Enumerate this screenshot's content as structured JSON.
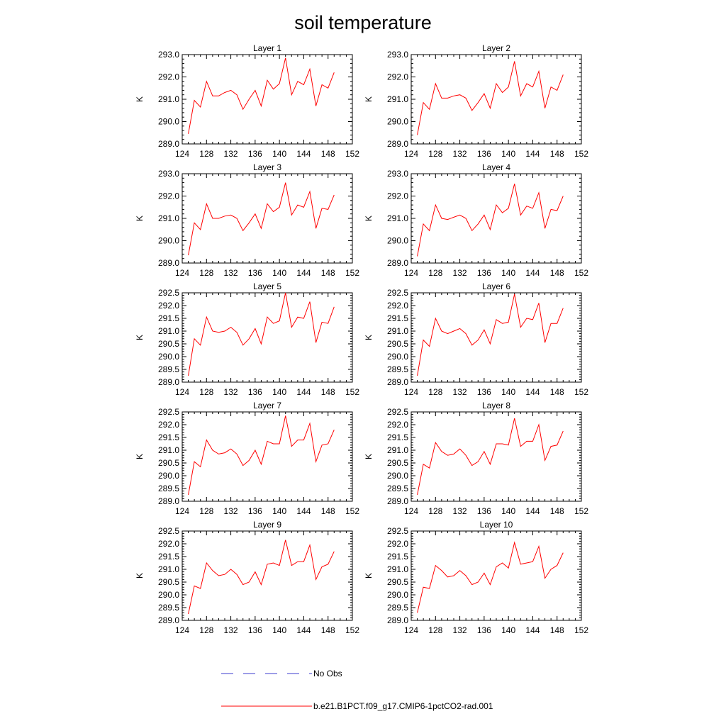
{
  "figure": {
    "title": "soil temperature"
  },
  "legend": {
    "entries": [
      {
        "label": "No Obs",
        "color": "#3b3bcf",
        "style": "dashed"
      },
      {
        "label": "b.e21.B1PCT.f09_g17.CMIP6-1pctCO2-rad.001",
        "color": "#ff0000",
        "style": "solid"
      }
    ]
  },
  "chart_data": [
    {
      "type": "line",
      "title": "Layer 1",
      "ylabel": "K",
      "xlim": [
        124,
        152
      ],
      "ylim": [
        289.0,
        293.0
      ],
      "xticks": [
        "124",
        "128",
        "132",
        "136",
        "140",
        "144",
        "148",
        "152"
      ],
      "yticks": [
        "289.0",
        "290.0",
        "291.0",
        "292.0",
        "293.0"
      ],
      "series": [
        {
          "name": "b.e21.B1PCT.f09_g17.CMIP6-1pctCO2-rad.001",
          "x": [
            125,
            126,
            127,
            128,
            129,
            130,
            131,
            132,
            133,
            134,
            135,
            136,
            137,
            138,
            139,
            140,
            141,
            142,
            143,
            144,
            145,
            146,
            147,
            148,
            149
          ],
          "values": [
            289.45,
            290.95,
            290.65,
            291.8,
            291.15,
            291.15,
            291.3,
            291.4,
            291.2,
            290.55,
            291.0,
            291.4,
            290.7,
            291.85,
            291.45,
            291.7,
            292.85,
            291.2,
            291.8,
            291.65,
            292.35,
            290.7,
            291.65,
            291.5,
            292.2
          ]
        }
      ]
    },
    {
      "type": "line",
      "title": "Layer 2",
      "ylabel": "K",
      "xlim": [
        124,
        152
      ],
      "ylim": [
        289.0,
        293.0
      ],
      "xticks": [
        "124",
        "128",
        "132",
        "136",
        "140",
        "144",
        "148",
        "152"
      ],
      "yticks": [
        "289.0",
        "290.0",
        "291.0",
        "292.0",
        "293.0"
      ],
      "series": [
        {
          "name": "b.e21.B1PCT.f09_g17.CMIP6-1pctCO2-rad.001",
          "x": [
            125,
            126,
            127,
            128,
            129,
            130,
            131,
            132,
            133,
            134,
            135,
            136,
            137,
            138,
            139,
            140,
            141,
            142,
            143,
            144,
            145,
            146,
            147,
            148,
            149
          ],
          "values": [
            289.4,
            290.85,
            290.55,
            291.7,
            291.05,
            291.05,
            291.15,
            291.2,
            291.05,
            290.5,
            290.85,
            291.25,
            290.6,
            291.7,
            291.3,
            291.55,
            292.7,
            291.15,
            291.7,
            291.55,
            292.25,
            290.6,
            291.55,
            291.4,
            292.1
          ]
        }
      ]
    },
    {
      "type": "line",
      "title": "Layer 3",
      "ylabel": "K",
      "xlim": [
        124,
        152
      ],
      "ylim": [
        289.0,
        293.0
      ],
      "xticks": [
        "124",
        "128",
        "132",
        "136",
        "140",
        "144",
        "148",
        "152"
      ],
      "yticks": [
        "289.0",
        "290.0",
        "291.0",
        "292.0",
        "293.0"
      ],
      "series": [
        {
          "name": "b.e21.B1PCT.f09_g17.CMIP6-1pctCO2-rad.001",
          "x": [
            125,
            126,
            127,
            128,
            129,
            130,
            131,
            132,
            133,
            134,
            135,
            136,
            137,
            138,
            139,
            140,
            141,
            142,
            143,
            144,
            145,
            146,
            147,
            148,
            149
          ],
          "values": [
            289.35,
            290.8,
            290.5,
            291.65,
            291.0,
            291.0,
            291.1,
            291.15,
            291.0,
            290.45,
            290.8,
            291.2,
            290.55,
            291.65,
            291.3,
            291.5,
            292.6,
            291.15,
            291.6,
            291.5,
            292.2,
            290.55,
            291.45,
            291.4,
            292.05
          ]
        }
      ]
    },
    {
      "type": "line",
      "title": "Layer 4",
      "ylabel": "K",
      "xlim": [
        124,
        152
      ],
      "ylim": [
        289.0,
        293.0
      ],
      "xticks": [
        "124",
        "128",
        "132",
        "136",
        "140",
        "144",
        "148",
        "152"
      ],
      "yticks": [
        "289.0",
        "290.0",
        "291.0",
        "292.0",
        "293.0"
      ],
      "series": [
        {
          "name": "b.e21.B1PCT.f09_g17.CMIP6-1pctCO2-rad.001",
          "x": [
            125,
            126,
            127,
            128,
            129,
            130,
            131,
            132,
            133,
            134,
            135,
            136,
            137,
            138,
            139,
            140,
            141,
            142,
            143,
            144,
            145,
            146,
            147,
            148,
            149
          ],
          "values": [
            289.3,
            290.75,
            290.45,
            291.6,
            291.0,
            290.95,
            291.05,
            291.15,
            291.0,
            290.45,
            290.75,
            291.15,
            290.5,
            291.6,
            291.25,
            291.45,
            292.55,
            291.15,
            291.55,
            291.45,
            292.15,
            290.55,
            291.4,
            291.35,
            292.0
          ]
        }
      ]
    },
    {
      "type": "line",
      "title": "Layer 5",
      "ylabel": "K",
      "xlim": [
        124,
        152
      ],
      "ylim": [
        289.0,
        292.5
      ],
      "xticks": [
        "124",
        "128",
        "132",
        "136",
        "140",
        "144",
        "148",
        "152"
      ],
      "yticks": [
        "289.0",
        "289.5",
        "290.0",
        "290.5",
        "291.0",
        "291.5",
        "292.0",
        "292.5"
      ],
      "series": [
        {
          "name": "b.e21.B1PCT.f09_g17.CMIP6-1pctCO2-rad.001",
          "x": [
            125,
            126,
            127,
            128,
            129,
            130,
            131,
            132,
            133,
            134,
            135,
            136,
            137,
            138,
            139,
            140,
            141,
            142,
            143,
            144,
            145,
            146,
            147,
            148,
            149
          ],
          "values": [
            289.25,
            290.7,
            290.45,
            291.55,
            291.0,
            290.95,
            291.0,
            291.15,
            290.95,
            290.45,
            290.7,
            291.1,
            290.5,
            291.55,
            291.3,
            291.4,
            292.5,
            291.15,
            291.55,
            291.5,
            292.15,
            290.55,
            291.35,
            291.3,
            291.95
          ]
        }
      ]
    },
    {
      "type": "line",
      "title": "Layer 6",
      "ylabel": "K",
      "xlim": [
        124,
        152
      ],
      "ylim": [
        289.0,
        292.5
      ],
      "xticks": [
        "124",
        "128",
        "132",
        "136",
        "140",
        "144",
        "148",
        "152"
      ],
      "yticks": [
        "289.0",
        "289.5",
        "290.0",
        "290.5",
        "291.0",
        "291.5",
        "292.0",
        "292.5"
      ],
      "series": [
        {
          "name": "b.e21.B1PCT.f09_g17.CMIP6-1pctCO2-rad.001",
          "x": [
            125,
            126,
            127,
            128,
            129,
            130,
            131,
            132,
            133,
            134,
            135,
            136,
            137,
            138,
            139,
            140,
            141,
            142,
            143,
            144,
            145,
            146,
            147,
            148,
            149
          ],
          "values": [
            289.25,
            290.65,
            290.4,
            291.5,
            291.0,
            290.9,
            291.0,
            291.1,
            290.9,
            290.45,
            290.65,
            291.05,
            290.5,
            291.45,
            291.3,
            291.35,
            292.45,
            291.15,
            291.5,
            291.45,
            292.1,
            290.55,
            291.3,
            291.3,
            291.9
          ]
        }
      ]
    },
    {
      "type": "line",
      "title": "Layer 7",
      "ylabel": "K",
      "xlim": [
        124,
        152
      ],
      "ylim": [
        289.0,
        292.5
      ],
      "xticks": [
        "124",
        "128",
        "132",
        "136",
        "140",
        "144",
        "148",
        "152"
      ],
      "yticks": [
        "289.0",
        "289.5",
        "290.0",
        "290.5",
        "291.0",
        "291.5",
        "292.0",
        "292.5"
      ],
      "series": [
        {
          "name": "b.e21.B1PCT.f09_g17.CMIP6-1pctCO2-rad.001",
          "x": [
            125,
            126,
            127,
            128,
            129,
            130,
            131,
            132,
            133,
            134,
            135,
            136,
            137,
            138,
            139,
            140,
            141,
            142,
            143,
            144,
            145,
            146,
            147,
            148,
            149
          ],
          "values": [
            289.25,
            290.55,
            290.35,
            291.4,
            291.0,
            290.85,
            290.9,
            291.05,
            290.85,
            290.4,
            290.6,
            291.0,
            290.45,
            291.35,
            291.25,
            291.25,
            292.35,
            291.15,
            291.4,
            291.4,
            292.05,
            290.55,
            291.2,
            291.25,
            291.8
          ]
        }
      ]
    },
    {
      "type": "line",
      "title": "Layer 8",
      "ylabel": "K",
      "xlim": [
        124,
        152
      ],
      "ylim": [
        289.0,
        292.5
      ],
      "xticks": [
        "124",
        "128",
        "132",
        "136",
        "140",
        "144",
        "148",
        "152"
      ],
      "yticks": [
        "289.0",
        "289.5",
        "290.0",
        "290.5",
        "291.0",
        "291.5",
        "292.0",
        "292.5"
      ],
      "series": [
        {
          "name": "b.e21.B1PCT.f09_g17.CMIP6-1pctCO2-rad.001",
          "x": [
            125,
            126,
            127,
            128,
            129,
            130,
            131,
            132,
            133,
            134,
            135,
            136,
            137,
            138,
            139,
            140,
            141,
            142,
            143,
            144,
            145,
            146,
            147,
            148,
            149
          ],
          "values": [
            289.25,
            290.45,
            290.3,
            291.3,
            290.95,
            290.8,
            290.85,
            291.05,
            290.8,
            290.4,
            290.55,
            290.95,
            290.45,
            291.25,
            291.25,
            291.2,
            292.25,
            291.15,
            291.35,
            291.35,
            292.0,
            290.6,
            291.15,
            291.2,
            291.75
          ]
        }
      ]
    },
    {
      "type": "line",
      "title": "Layer 9",
      "ylabel": "K",
      "xlim": [
        124,
        152
      ],
      "ylim": [
        289.0,
        292.5
      ],
      "xticks": [
        "124",
        "128",
        "132",
        "136",
        "140",
        "144",
        "148",
        "152"
      ],
      "yticks": [
        "289.0",
        "289.5",
        "290.0",
        "290.5",
        "291.0",
        "291.5",
        "292.0",
        "292.5"
      ],
      "series": [
        {
          "name": "b.e21.B1PCT.f09_g17.CMIP6-1pctCO2-rad.001",
          "x": [
            125,
            126,
            127,
            128,
            129,
            130,
            131,
            132,
            133,
            134,
            135,
            136,
            137,
            138,
            139,
            140,
            141,
            142,
            143,
            144,
            145,
            146,
            147,
            148,
            149
          ],
          "values": [
            289.25,
            290.35,
            290.25,
            291.25,
            290.95,
            290.75,
            290.8,
            291.0,
            290.8,
            290.4,
            290.5,
            290.9,
            290.4,
            291.2,
            291.25,
            291.15,
            292.15,
            291.15,
            291.3,
            291.3,
            291.95,
            290.6,
            291.1,
            291.2,
            291.7
          ]
        }
      ]
    },
    {
      "type": "line",
      "title": "Layer 10",
      "ylabel": "K",
      "xlim": [
        124,
        152
      ],
      "ylim": [
        289.0,
        292.5
      ],
      "xticks": [
        "124",
        "128",
        "132",
        "136",
        "140",
        "144",
        "148",
        "152"
      ],
      "yticks": [
        "289.0",
        "289.5",
        "290.0",
        "290.5",
        "291.0",
        "291.5",
        "292.0",
        "292.5"
      ],
      "series": [
        {
          "name": "b.e21.B1PCT.f09_g17.CMIP6-1pctCO2-rad.001",
          "x": [
            125,
            126,
            127,
            128,
            129,
            130,
            131,
            132,
            133,
            134,
            135,
            136,
            137,
            138,
            139,
            140,
            141,
            142,
            143,
            144,
            145,
            146,
            147,
            148,
            149
          ],
          "values": [
            289.3,
            290.3,
            290.25,
            291.15,
            290.95,
            290.7,
            290.75,
            290.95,
            290.75,
            290.4,
            290.5,
            290.85,
            290.4,
            291.1,
            291.25,
            291.05,
            292.05,
            291.2,
            291.25,
            291.3,
            291.9,
            290.65,
            291.0,
            291.15,
            291.65
          ]
        }
      ]
    }
  ]
}
